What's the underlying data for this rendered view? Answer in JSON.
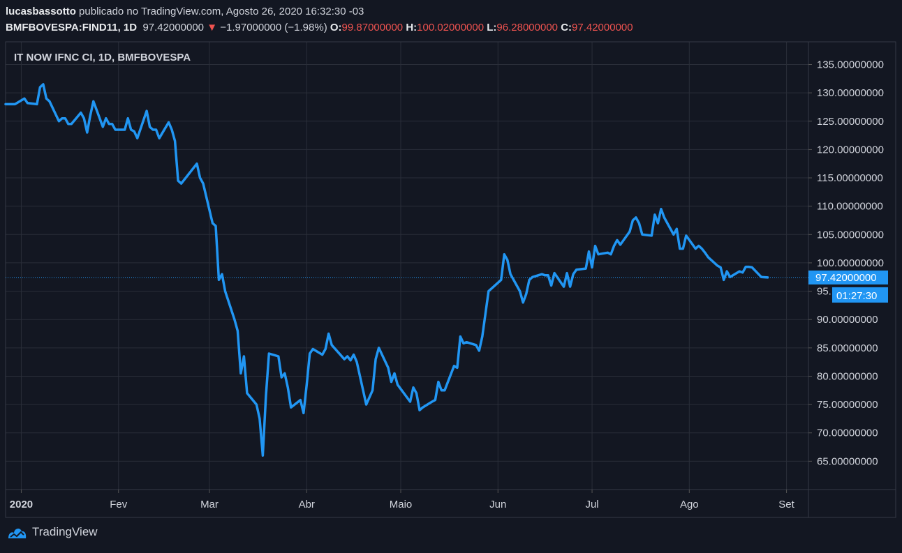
{
  "header": {
    "author": "lucasbassotto",
    "published_text": "publicado no TradingView.com, Agosto 26, 2020 16:32:30 -03",
    "symbol": "BMFBOVESPA:FIND11, 1D",
    "last": "97.42000000",
    "change": "−1.97000000 (−1.98%)",
    "open_label": "O:",
    "open": "99.87000000",
    "high_label": "H:",
    "high": "100.02000000",
    "low_label": "L:",
    "low": "96.28000000",
    "close_label": "C:",
    "close": "97.42000000"
  },
  "footer": {
    "brand": "TradingView"
  },
  "colors": {
    "line": "#2196f3",
    "background": "#131722",
    "grid": "#2a2e39",
    "down": "#ef5350"
  },
  "chart_data": {
    "type": "line",
    "title": "IT NOW IFNC CI, 1D, BMFBOVESPA",
    "ylim": [
      60,
      139
    ],
    "yticks": [
      65,
      70,
      75,
      80,
      85,
      90,
      95,
      100,
      105,
      110,
      115,
      120,
      125,
      130,
      135
    ],
    "ytick_labels": [
      "65.00000000",
      "70.00000000",
      "75.00000000",
      "80.00000000",
      "85.00000000",
      "90.00000000",
      "95.",
      "100.00000000",
      "105.00000000",
      "110.00000000",
      "115.00000000",
      "120.00000000",
      "125.00000000",
      "130.00000000",
      "135.00000000"
    ],
    "xlim": [
      "2019-12-27",
      "2020-09-08"
    ],
    "xticks": [
      {
        "date": "2020-01-01",
        "label": "2020",
        "bold": true
      },
      {
        "date": "2020-02-01",
        "label": "Fev"
      },
      {
        "date": "2020-03-01",
        "label": "Mar"
      },
      {
        "date": "2020-04-01",
        "label": "Abr"
      },
      {
        "date": "2020-05-01",
        "label": "Maio"
      },
      {
        "date": "2020-06-01",
        "label": "Jun"
      },
      {
        "date": "2020-07-01",
        "label": "Jul"
      },
      {
        "date": "2020-08-01",
        "label": "Ago"
      },
      {
        "date": "2020-09-01",
        "label": "Set"
      }
    ],
    "last_price": 97.42,
    "last_price_label": "97.42000000",
    "countdown_label": "01:27:30",
    "series": [
      {
        "values": [
          [
            "2019-12-27",
            128.0
          ],
          [
            "2019-12-30",
            128.0
          ],
          [
            "2020-01-02",
            129.0
          ],
          [
            "2020-01-03",
            128.2
          ],
          [
            "2020-01-06",
            128.0
          ],
          [
            "2020-01-07",
            131.0
          ],
          [
            "2020-01-08",
            131.5
          ],
          [
            "2020-01-09",
            129.0
          ],
          [
            "2020-01-10",
            128.5
          ],
          [
            "2020-01-13",
            125.0
          ],
          [
            "2020-01-14",
            125.5
          ],
          [
            "2020-01-15",
            125.5
          ],
          [
            "2020-01-16",
            124.5
          ],
          [
            "2020-01-17",
            124.5
          ],
          [
            "2020-01-20",
            126.5
          ],
          [
            "2020-01-21",
            125.5
          ],
          [
            "2020-01-22",
            123.0
          ],
          [
            "2020-01-23",
            126.0
          ],
          [
            "2020-01-24",
            128.5
          ],
          [
            "2020-01-27",
            124.0
          ],
          [
            "2020-01-28",
            125.5
          ],
          [
            "2020-01-29",
            124.5
          ],
          [
            "2020-01-30",
            124.5
          ],
          [
            "2020-01-31",
            123.5
          ],
          [
            "2020-02-03",
            123.5
          ],
          [
            "2020-02-04",
            125.5
          ],
          [
            "2020-02-05",
            123.5
          ],
          [
            "2020-02-06",
            123.2
          ],
          [
            "2020-02-07",
            122.0
          ],
          [
            "2020-02-10",
            126.8
          ],
          [
            "2020-02-11",
            124.0
          ],
          [
            "2020-02-12",
            123.5
          ],
          [
            "2020-02-13",
            123.5
          ],
          [
            "2020-02-14",
            122.0
          ],
          [
            "2020-02-17",
            124.8
          ],
          [
            "2020-02-18",
            123.5
          ],
          [
            "2020-02-19",
            121.5
          ],
          [
            "2020-02-20",
            114.5
          ],
          [
            "2020-02-21",
            114.0
          ],
          [
            "2020-02-26",
            117.5
          ],
          [
            "2020-02-27",
            115.0
          ],
          [
            "2020-02-28",
            114.0
          ],
          [
            "2020-03-02",
            107.0
          ],
          [
            "2020-03-03",
            106.5
          ],
          [
            "2020-03-04",
            97.0
          ],
          [
            "2020-03-05",
            98.0
          ],
          [
            "2020-03-06",
            95.0
          ],
          [
            "2020-03-09",
            90.0
          ],
          [
            "2020-03-10",
            88.0
          ],
          [
            "2020-03-11",
            80.5
          ],
          [
            "2020-03-12",
            83.5
          ],
          [
            "2020-03-13",
            77.0
          ],
          [
            "2020-03-16",
            75.0
          ],
          [
            "2020-03-17",
            72.5
          ],
          [
            "2020-03-18",
            66.0
          ],
          [
            "2020-03-19",
            76.5
          ],
          [
            "2020-03-20",
            84.0
          ],
          [
            "2020-03-23",
            83.5
          ],
          [
            "2020-03-24",
            79.8
          ],
          [
            "2020-03-25",
            80.5
          ],
          [
            "2020-03-26",
            78.0
          ],
          [
            "2020-03-27",
            74.5
          ],
          [
            "2020-03-30",
            75.8
          ],
          [
            "2020-03-31",
            73.5
          ],
          [
            "2020-04-01",
            78.5
          ],
          [
            "2020-04-02",
            84.0
          ],
          [
            "2020-04-03",
            84.8
          ],
          [
            "2020-04-06",
            83.8
          ],
          [
            "2020-04-07",
            84.8
          ],
          [
            "2020-04-08",
            87.5
          ],
          [
            "2020-04-09",
            85.5
          ],
          [
            "2020-04-13",
            83.0
          ],
          [
            "2020-04-14",
            83.5
          ],
          [
            "2020-04-15",
            82.8
          ],
          [
            "2020-04-16",
            83.8
          ],
          [
            "2020-04-17",
            82.5
          ],
          [
            "2020-04-20",
            75.0
          ],
          [
            "2020-04-22",
            77.5
          ],
          [
            "2020-04-23",
            83.0
          ],
          [
            "2020-04-24",
            85.0
          ],
          [
            "2020-04-27",
            81.5
          ],
          [
            "2020-04-28",
            79.0
          ],
          [
            "2020-04-29",
            80.5
          ],
          [
            "2020-04-30",
            78.5
          ],
          [
            "2020-05-04",
            75.5
          ],
          [
            "2020-05-05",
            78.0
          ],
          [
            "2020-05-06",
            77.0
          ],
          [
            "2020-05-07",
            74.0
          ],
          [
            "2020-05-08",
            74.5
          ],
          [
            "2020-05-11",
            75.5
          ],
          [
            "2020-05-12",
            75.8
          ],
          [
            "2020-05-13",
            79.0
          ],
          [
            "2020-05-14",
            77.5
          ],
          [
            "2020-05-15",
            77.5
          ],
          [
            "2020-05-18",
            81.8
          ],
          [
            "2020-05-19",
            81.5
          ],
          [
            "2020-05-20",
            87.0
          ],
          [
            "2020-05-21",
            85.8
          ],
          [
            "2020-05-22",
            86.0
          ],
          [
            "2020-05-25",
            85.5
          ],
          [
            "2020-05-26",
            84.5
          ],
          [
            "2020-05-27",
            87.0
          ],
          [
            "2020-05-28",
            91.0
          ],
          [
            "2020-05-29",
            95.0
          ],
          [
            "2020-06-01",
            96.5
          ],
          [
            "2020-06-02",
            97.0
          ],
          [
            "2020-06-03",
            101.5
          ],
          [
            "2020-06-04",
            100.5
          ],
          [
            "2020-06-05",
            98.0
          ],
          [
            "2020-06-08",
            95.0
          ],
          [
            "2020-06-09",
            93.0
          ],
          [
            "2020-06-10",
            94.5
          ],
          [
            "2020-06-11",
            97.0
          ],
          [
            "2020-06-12",
            97.5
          ],
          [
            "2020-06-15",
            98.0
          ],
          [
            "2020-06-16",
            97.8
          ],
          [
            "2020-06-17",
            97.8
          ],
          [
            "2020-06-18",
            96.0
          ],
          [
            "2020-06-19",
            98.2
          ],
          [
            "2020-06-22",
            95.8
          ],
          [
            "2020-06-23",
            98.2
          ],
          [
            "2020-06-24",
            95.8
          ],
          [
            "2020-06-25",
            98.0
          ],
          [
            "2020-06-26",
            98.8
          ],
          [
            "2020-06-29",
            99.0
          ],
          [
            "2020-06-30",
            102.0
          ],
          [
            "2020-07-01",
            99.2
          ],
          [
            "2020-07-02",
            103.0
          ],
          [
            "2020-07-03",
            101.5
          ],
          [
            "2020-07-06",
            101.8
          ],
          [
            "2020-07-07",
            101.5
          ],
          [
            "2020-07-08",
            103.0
          ],
          [
            "2020-07-09",
            104.0
          ],
          [
            "2020-07-10",
            103.2
          ],
          [
            "2020-07-13",
            105.5
          ],
          [
            "2020-07-14",
            107.5
          ],
          [
            "2020-07-15",
            108.0
          ],
          [
            "2020-07-16",
            107.0
          ],
          [
            "2020-07-17",
            105.0
          ],
          [
            "2020-07-20",
            104.8
          ],
          [
            "2020-07-21",
            108.5
          ],
          [
            "2020-07-22",
            107.0
          ],
          [
            "2020-07-23",
            109.5
          ],
          [
            "2020-07-24",
            108.0
          ],
          [
            "2020-07-27",
            105.0
          ],
          [
            "2020-07-28",
            106.0
          ],
          [
            "2020-07-29",
            102.5
          ],
          [
            "2020-07-30",
            102.5
          ],
          [
            "2020-07-31",
            104.8
          ],
          [
            "2020-08-03",
            102.5
          ],
          [
            "2020-08-04",
            103.0
          ],
          [
            "2020-08-05",
            102.5
          ],
          [
            "2020-08-06",
            101.8
          ],
          [
            "2020-08-07",
            101.0
          ],
          [
            "2020-08-10",
            99.5
          ],
          [
            "2020-08-11",
            99.2
          ],
          [
            "2020-08-12",
            97.0
          ],
          [
            "2020-08-13",
            98.5
          ],
          [
            "2020-08-14",
            97.5
          ],
          [
            "2020-08-17",
            98.5
          ],
          [
            "2020-08-18",
            98.3
          ],
          [
            "2020-08-19",
            99.3
          ],
          [
            "2020-08-20",
            99.3
          ],
          [
            "2020-08-21",
            99.2
          ],
          [
            "2020-08-24",
            97.5
          ],
          [
            "2020-08-26",
            97.42
          ]
        ]
      }
    ]
  }
}
